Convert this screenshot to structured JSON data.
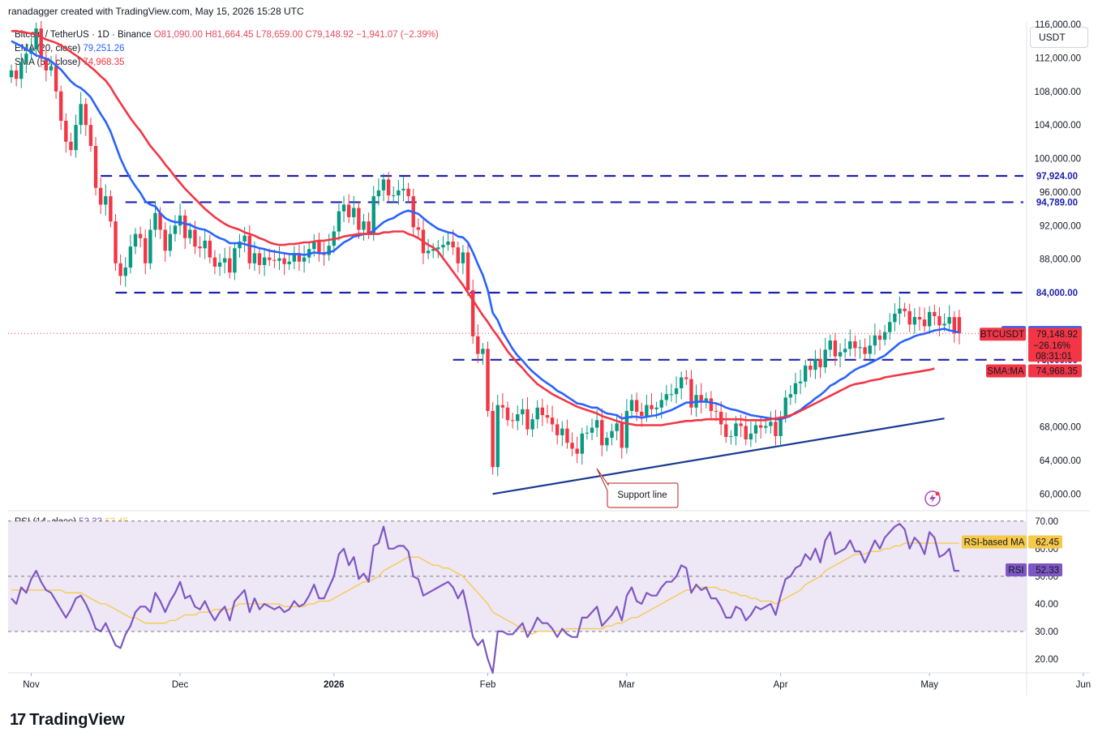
{
  "header": {
    "attribution": "ranadagger created with TradingView.com, May 15, 2026 15:28 UTC"
  },
  "legend": {
    "symbol": "Bitcoin / TetherUS · 1D · Binance",
    "ohlc": "O81,090.00  H81,664.45  L78,659.00  C79,148.92  −1,941.07 (−2.39%)",
    "ema_label": "EMA (20, close)",
    "ema_value": "79,251.26",
    "sma_label": "SMA (50, close)",
    "sma_value": "74,968.35"
  },
  "rsi_legend": {
    "label": "RSI (14, close)",
    "rsi_value": "52.33",
    "ma_value": "62.45"
  },
  "currency_button": "USDT",
  "brand": "TradingView",
  "colors": {
    "bull": "#089981",
    "bear": "#f23645",
    "ema": "#2962ff",
    "sma": "#f23645",
    "level_line": "#1e22aa",
    "support_line": "#1a3a8f",
    "rsi": "#7e57c2",
    "rsi_ma": "#f7c948",
    "rsi_band": "#ede7f6",
    "annotation": "#b22222"
  },
  "chart_data": {
    "type": "candlestick",
    "symbol": "BTCUSDT",
    "timeframe": "1D",
    "y_range": [
      58000,
      116000
    ],
    "price_ticks": [
      {
        "v": 116000,
        "label": "116,000.00"
      },
      {
        "v": 112000,
        "label": "112,000.00"
      },
      {
        "v": 108000,
        "label": "108,000.00"
      },
      {
        "v": 104000,
        "label": "104,000.00"
      },
      {
        "v": 100000,
        "label": "100,000.00"
      },
      {
        "v": 96000,
        "label": "96,000.00"
      },
      {
        "v": 92000,
        "label": "92,000.00"
      },
      {
        "v": 88000,
        "label": "88,000.00"
      },
      {
        "v": 68000,
        "label": "68,000.00"
      },
      {
        "v": 64000,
        "label": "64,000.00"
      },
      {
        "v": 60000,
        "label": "60,000.00"
      }
    ],
    "time_ticks": [
      {
        "day": 4,
        "label": "Nov"
      },
      {
        "day": 34,
        "label": "Dec"
      },
      {
        "day": 65,
        "label": "2026"
      },
      {
        "day": 96,
        "label": "Feb"
      },
      {
        "day": 124,
        "label": "Mar"
      },
      {
        "day": 155,
        "label": "Apr"
      },
      {
        "day": 185,
        "label": "May"
      },
      {
        "day": 216,
        "label": "Jun"
      }
    ],
    "last_day": 202,
    "closes": [
      110500,
      109500,
      111500,
      112500,
      113000,
      115500,
      112000,
      110500,
      111000,
      108000,
      104500,
      102000,
      101000,
      104000,
      106500,
      104000,
      101500,
      96500,
      94500,
      95500,
      92500,
      87500,
      86000,
      87000,
      89500,
      91000,
      90500,
      87500,
      91500,
      93500,
      91500,
      89000,
      91000,
      92000,
      93200,
      90500,
      91500,
      89500,
      89300,
      90200,
      88200,
      87100,
      87600,
      88100,
      86400,
      89300,
      90100,
      90800,
      87500,
      88700,
      87300,
      88200,
      87900,
      87800,
      88100,
      87400,
      87700,
      88500,
      87700,
      88200,
      89200,
      90100,
      88800,
      88500,
      89600,
      91300,
      93700,
      94500,
      93000,
      94100,
      91500,
      92500,
      91100,
      95500,
      96200,
      97500,
      95600,
      95600,
      96200,
      96400,
      95500,
      91800,
      91500,
      88700,
      89000,
      89200,
      89400,
      89700,
      90100,
      89400,
      87500,
      88800,
      84300,
      78800,
      76700,
      77300,
      69900,
      63200,
      70600,
      70300,
      68800,
      68700,
      69500,
      70100,
      67700,
      68900,
      70300,
      69400,
      69100,
      68300,
      67000,
      67800,
      66100,
      65400,
      64800,
      67200,
      67300,
      67900,
      68800,
      65800,
      66700,
      67500,
      68400,
      65500,
      69900,
      71200,
      69800,
      69300,
      70600,
      70100,
      70300,
      71200,
      71900,
      71900,
      72600,
      73900,
      73700,
      70300,
      71800,
      70900,
      71400,
      69900,
      69800,
      68300,
      66800,
      66900,
      68400,
      68100,
      66500,
      67200,
      68200,
      67900,
      68100,
      68600,
      66900,
      69200,
      71500,
      71900,
      73200,
      73400,
      75300,
      74800,
      76100,
      75100,
      77200,
      78300,
      76400,
      76900,
      77300,
      78200,
      77400,
      77500,
      76700,
      77700,
      78900,
      78400,
      79300,
      80500,
      81500,
      82100,
      81800,
      80200,
      81100,
      80800,
      80000,
      81700,
      81200,
      80100,
      80300,
      81090,
      79150,
      79149
    ],
    "ema20": [
      114000,
      113700,
      113400,
      113000,
      112700,
      112300,
      112100,
      111900,
      111600,
      111100,
      110600,
      109900,
      109200,
      108700,
      108400,
      107900,
      107300,
      106300,
      105300,
      104400,
      103200,
      101600,
      100000,
      98700,
      97600,
      96700,
      95900,
      94900,
      94500,
      94300,
      93500,
      92900,
      92600,
      92400,
      92400,
      92200,
      92100,
      91800,
      91600,
      91500,
      91200,
      90800,
      90500,
      90300,
      89900,
      89900,
      89900,
      89800,
      89600,
      89500,
      89300,
      89200,
      89000,
      88900,
      88800,
      88700,
      88600,
      88600,
      88600,
      88500,
      88600,
      88800,
      88700,
      88700,
      88800,
      89000,
      89500,
      90000,
      90300,
      90700,
      90800,
      91000,
      91000,
      91400,
      91900,
      92400,
      92700,
      92900,
      93300,
      93600,
      93800,
      93600,
      93400,
      92900,
      92400,
      92000,
      91600,
      91400,
      91200,
      91100,
      90700,
      90600,
      90000,
      88800,
      87400,
      86100,
      84300,
      81600,
      80700,
      79300,
      78300,
      77300,
      76500,
      75900,
      75200,
      74600,
      74100,
      73600,
      73200,
      72800,
      72300,
      72000,
      71600,
      71200,
      70800,
      70700,
      70500,
      70300,
      70300,
      69900,
      69600,
      69500,
      69400,
      69000,
      69100,
      69200,
      69200,
      69100,
      69200,
      69300,
      69400,
      69600,
      69800,
      70000,
      70300,
      70600,
      70900,
      70900,
      71000,
      71000,
      71000,
      70900,
      70800,
      70600,
      70300,
      70100,
      70000,
      69800,
      69600,
      69400,
      69300,
      69200,
      69100,
      69000,
      68900,
      68900,
      69100,
      69300,
      69700,
      70000,
      70500,
      70900,
      71400,
      71800,
      72300,
      72900,
      73200,
      73600,
      73900,
      74400,
      74800,
      75100,
      75300,
      75600,
      75900,
      76200,
      76500,
      77000,
      77500,
      78000,
      78300,
      78500,
      78800,
      79000,
      79100,
      79300,
      79500,
      79600,
      79700,
      79500,
      79400,
      79251
    ],
    "sma50": [
      115200,
      115200,
      115100,
      115000,
      114900,
      114800,
      114500,
      114200,
      114000,
      113800,
      113500,
      113100,
      112700,
      112300,
      111900,
      111400,
      110900,
      110400,
      109800,
      109300,
      108500,
      107500,
      106600,
      105700,
      104800,
      104000,
      103300,
      102400,
      101500,
      100800,
      100100,
      99300,
      98600,
      97800,
      97100,
      96400,
      95800,
      95200,
      94600,
      94000,
      93500,
      93000,
      92600,
      92200,
      91900,
      91700,
      91500,
      91200,
      91000,
      90800,
      90500,
      90300,
      90000,
      89800,
      89700,
      89700,
      89800,
      89800,
      89900,
      90000,
      90000,
      90100,
      90200,
      90200,
      90300,
      90400,
      90500,
      90700,
      90800,
      90900,
      91000,
      91000,
      91000,
      91000,
      91000,
      91200,
      91200,
      91300,
      91300,
      91300,
      91000,
      90800,
      90500,
      90100,
      89700,
      89400,
      88900,
      88100,
      87300,
      86500,
      85700,
      84900,
      84000,
      83100,
      82200,
      81300,
      80500,
      79600,
      78800,
      77900,
      77000,
      76300,
      75600,
      75000,
      74300,
      73700,
      73100,
      72700,
      72300,
      71900,
      71600,
      71300,
      71000,
      70700,
      70400,
      70200,
      70000,
      69800,
      69600,
      69300,
      69100,
      68900,
      68700,
      68500,
      68400,
      68300,
      68200,
      68200,
      68200,
      68200,
      68200,
      68200,
      68300,
      68400,
      68500,
      68600,
      68700,
      68700,
      68800,
      68800,
      68900,
      68900,
      68900,
      68900,
      68900,
      68900,
      68900,
      68900,
      68800,
      68800,
      68800,
      68800,
      68800,
      68900,
      69000,
      69100,
      69200,
      69400,
      69600,
      69900,
      70200,
      70500,
      70800,
      71100,
      71400,
      71700,
      72000,
      72300,
      72600,
      72900,
      73100,
      73200,
      73300,
      73500,
      73600,
      73700,
      73900,
      74000,
      74100,
      74200,
      74300,
      74400,
      74500,
      74600,
      74700,
      74800,
      74968
    ],
    "levels": [
      {
        "v": 97924,
        "label": "97,924.00",
        "from_day": 18
      },
      {
        "v": 94789,
        "label": "94,789.00",
        "from_day": 23
      },
      {
        "v": 84000,
        "label": "84,000.00",
        "from_day": 21
      },
      {
        "v": 76000,
        "label": "76,000.00",
        "from_day": 89
      }
    ],
    "support_line": {
      "label": "Support line",
      "from": {
        "day": 97,
        "v": 60000
      },
      "to": {
        "day": 188,
        "v": 69000
      }
    },
    "current_price": {
      "label": "BTCUSDT",
      "value": "79,148.92",
      "change": "−26.16%",
      "countdown": "08:31:01",
      "v": 79149
    },
    "ema_tag": {
      "label": "EMA",
      "value": "79,251.26",
      "v": 79251
    },
    "sma_tag": {
      "label": "SMA:MA",
      "value": "74,968.35",
      "v": 74968
    },
    "rsi": {
      "y_range": [
        15,
        72
      ],
      "overbought": 70,
      "oversold": 30,
      "ticks": [
        {
          "v": 70,
          "label": "70.00"
        },
        {
          "v": 60,
          "label": "60.00"
        },
        {
          "v": 50,
          "label": "50.00"
        },
        {
          "v": 40,
          "label": "40.00"
        },
        {
          "v": 30,
          "label": "30.00"
        },
        {
          "v": 20,
          "label": "20.00"
        }
      ],
      "values": [
        42,
        40,
        46,
        44,
        49,
        52,
        48,
        45,
        44,
        41,
        38,
        35,
        38,
        42,
        43,
        40,
        36,
        31,
        30,
        33,
        29,
        25,
        24,
        29,
        32,
        37,
        39,
        39,
        37,
        44,
        41,
        37,
        41,
        44,
        48,
        42,
        43,
        39,
        38,
        41,
        37,
        34,
        37,
        39,
        34,
        41,
        43,
        45,
        37,
        42,
        38,
        40,
        39,
        38,
        39,
        37,
        38,
        41,
        39,
        40,
        43,
        47,
        42,
        42,
        46,
        50,
        58,
        60,
        54,
        57,
        49,
        51,
        48,
        61,
        62,
        68,
        60,
        60,
        61,
        61,
        59,
        50,
        49,
        43,
        44,
        45,
        46,
        47,
        48,
        46,
        42,
        45,
        37,
        28,
        25,
        27,
        20,
        15,
        30,
        30,
        29,
        29,
        31,
        33,
        28,
        31,
        35,
        33,
        33,
        31,
        28,
        31,
        29,
        28,
        28,
        35,
        35,
        37,
        39,
        32,
        34,
        36,
        39,
        34,
        43,
        46,
        41,
        40,
        44,
        43,
        43,
        46,
        48,
        48,
        50,
        54,
        53,
        44,
        47,
        45,
        46,
        42,
        42,
        39,
        35,
        35,
        39,
        38,
        34,
        36,
        39,
        38,
        39,
        40,
        36,
        43,
        49,
        50,
        53,
        54,
        58,
        56,
        60,
        55,
        63,
        66,
        58,
        59,
        60,
        63,
        59,
        59,
        55,
        59,
        63,
        60,
        64,
        66,
        68,
        69,
        67,
        60,
        64,
        62,
        58,
        66,
        64,
        57,
        58,
        60,
        52,
        52
      ],
      "ma": [
        45,
        45,
        45,
        45,
        45,
        45,
        45,
        45,
        45,
        45,
        45,
        44,
        44,
        44,
        44,
        43,
        42,
        41,
        40,
        40,
        39,
        38,
        37,
        36,
        35,
        35,
        34,
        33,
        33,
        33,
        33,
        33,
        34,
        34,
        35,
        36,
        36,
        36,
        37,
        37,
        37,
        38,
        38,
        38,
        38,
        39,
        40,
        40,
        40,
        40,
        40,
        40,
        40,
        40,
        40,
        39,
        39,
        39,
        39,
        39,
        40,
        40,
        41,
        41,
        41,
        42,
        43,
        44,
        45,
        46,
        47,
        48,
        48,
        49,
        50,
        52,
        53,
        54,
        55,
        56,
        57,
        57,
        57,
        56,
        55,
        54,
        54,
        53,
        53,
        52,
        51,
        50,
        48,
        46,
        44,
        42,
        40,
        37,
        36,
        35,
        34,
        33,
        32,
        31,
        30,
        29,
        30,
        30,
        30,
        30,
        30,
        30,
        31,
        31,
        31,
        31,
        31,
        31,
        31,
        31,
        32,
        32,
        33,
        33,
        34,
        35,
        35,
        36,
        37,
        38,
        39,
        40,
        41,
        42,
        43,
        44,
        45,
        45,
        46,
        46,
        46,
        46,
        46,
        45,
        45,
        44,
        44,
        43,
        43,
        42,
        42,
        41,
        41,
        41,
        40,
        41,
        42,
        43,
        44,
        45,
        47,
        48,
        49,
        50,
        52,
        53,
        54,
        55,
        56,
        57,
        58,
        58,
        58,
        59,
        59,
        59,
        60,
        60,
        61,
        61,
        62,
        62,
        62,
        62,
        62,
        62,
        62,
        62,
        62,
        62,
        62,
        62
      ]
    }
  }
}
